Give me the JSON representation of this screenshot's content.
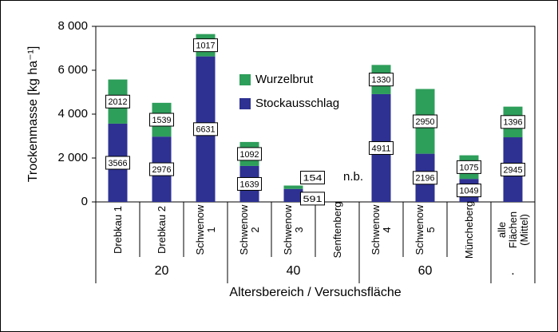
{
  "chart_data": {
    "type": "stacked-bar",
    "y_label": "Trockenmasse [kg ha⁻¹]",
    "x_label": "Altersbereich / Versuchsfläche",
    "categories": [
      "Drebkau 1",
      "Drebkau 2",
      "Schwenow 1",
      "Schwenow 2",
      "Schwenow 3",
      "Senftenberg",
      "Schwenow 4",
      "Schwenow 5",
      "Müncheberg",
      "alle Flächen (Mittel)"
    ],
    "group_labels": [
      "20",
      "40",
      "60",
      "."
    ],
    "series": [
      {
        "name": "Stockausschlag",
        "color": "#2e3192",
        "values": [
          3566,
          2976,
          6631,
          1639,
          591,
          null,
          4911,
          2196,
          1049,
          2945
        ]
      },
      {
        "name": "Wurzelbrut",
        "color": "#2e9e5b",
        "values": [
          2012,
          1539,
          1017,
          1092,
          154,
          null,
          1330,
          2950,
          1075,
          1396
        ]
      }
    ],
    "annotations": [
      "n.b."
    ],
    "ylim": [
      0,
      8000
    ],
    "yticks": [
      0,
      {
        "value": 2000,
        "label": "2 000"
      },
      {
        "value": 4000,
        "label": "4 000"
      },
      {
        "value": 6000,
        "label": "6 000"
      },
      {
        "value": 8000,
        "label": "8 000"
      }
    ]
  }
}
